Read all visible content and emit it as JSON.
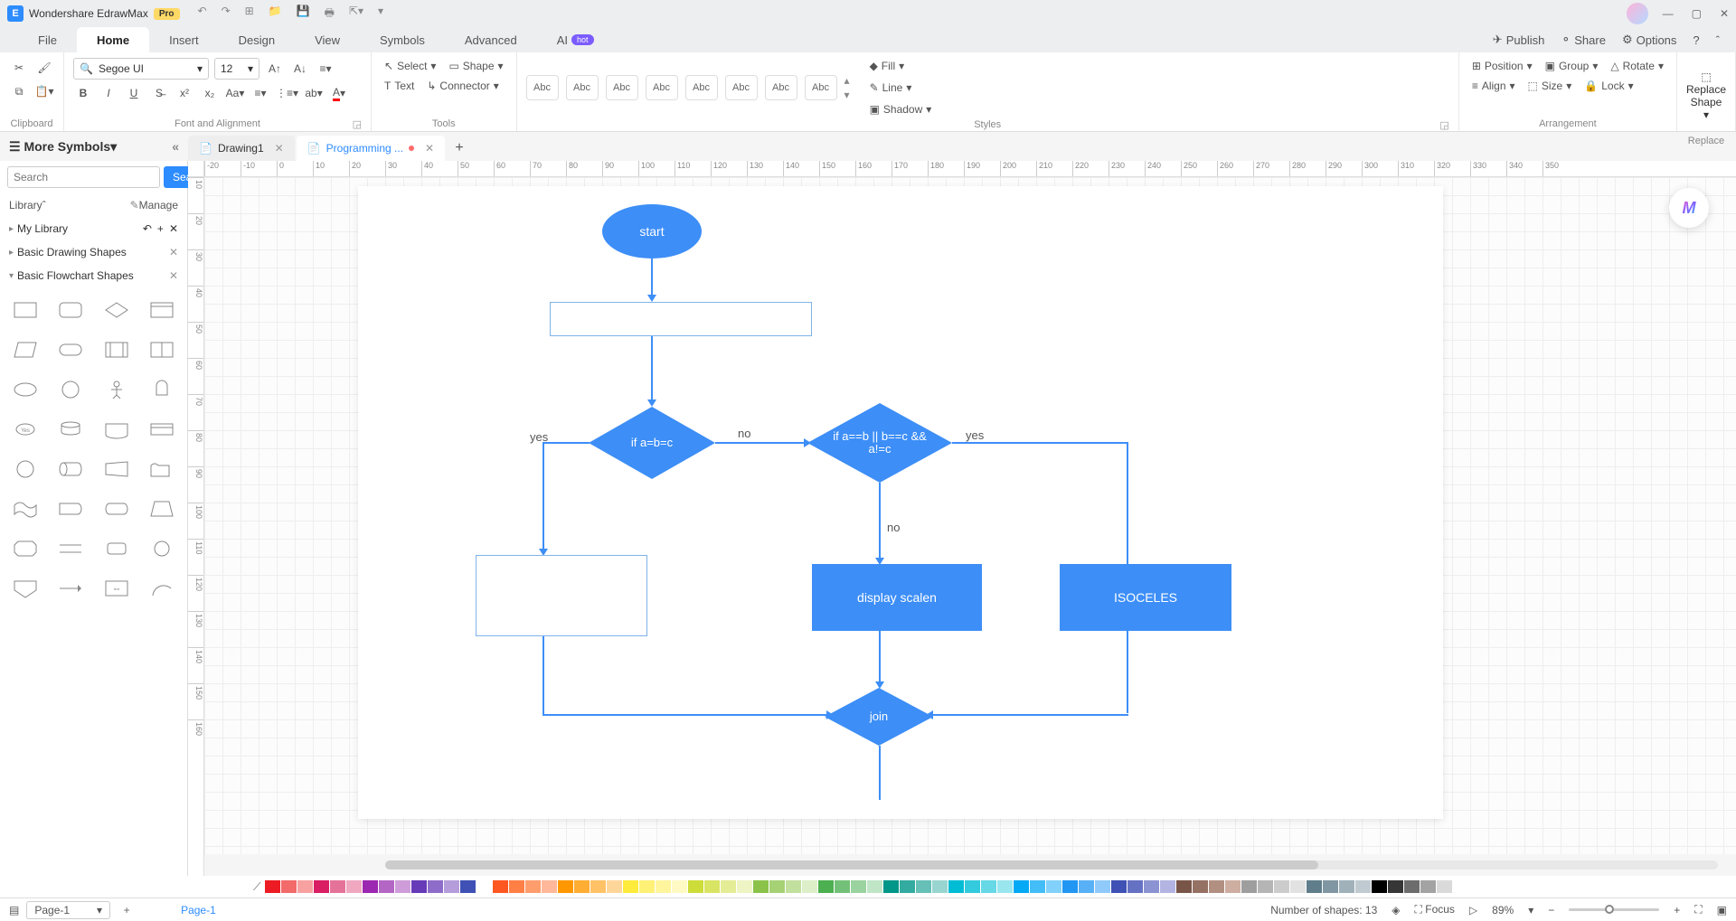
{
  "app": {
    "title": "Wondershare EdrawMax",
    "badge": "Pro"
  },
  "menus": [
    "File",
    "Home",
    "Insert",
    "Design",
    "View",
    "Symbols",
    "Advanced",
    "AI"
  ],
  "menu_active": 1,
  "ai_badge": "hot",
  "topright": {
    "publish": "Publish",
    "share": "Share",
    "options": "Options"
  },
  "ribbon": {
    "font_family": "Segoe UI",
    "font_size": "12",
    "tools_select": "Select",
    "tools_shape": "Shape",
    "tools_text": "Text",
    "tools_connector": "Connector",
    "style_label": "Abc",
    "fill": "Fill",
    "line": "Line",
    "shadow": "Shadow",
    "position": "Position",
    "group": "Group",
    "rotate": "Rotate",
    "align": "Align",
    "size": "Size",
    "lock": "Lock",
    "replace_shape": "Replace\nShape",
    "groups": {
      "clipboard": "Clipboard",
      "font": "Font and Alignment",
      "tools": "Tools",
      "styles": "Styles",
      "arrangement": "Arrangement",
      "replace": "Replace"
    }
  },
  "left": {
    "more_symbols": "More Symbols",
    "search_placeholder": "Search",
    "search_btn": "Search",
    "library": "Library",
    "manage": "Manage",
    "my_library": "My Library",
    "basic_drawing": "Basic Drawing Shapes",
    "basic_flowchart": "Basic Flowchart Shapes"
  },
  "doctabs": [
    {
      "label": "Drawing1",
      "active": false,
      "dirty": false
    },
    {
      "label": "Programming ...",
      "active": true,
      "dirty": true
    }
  ],
  "ruler_h": [
    -20,
    -10,
    0,
    10,
    20,
    30,
    40,
    50,
    60,
    70,
    80,
    90,
    100,
    110,
    120,
    130,
    140,
    150,
    160,
    170,
    180,
    190,
    200,
    210,
    220,
    230,
    240,
    250,
    260,
    270,
    280,
    290,
    300,
    310,
    320,
    330,
    340,
    350
  ],
  "ruler_v": [
    10,
    20,
    30,
    40,
    50,
    60,
    70,
    80,
    90,
    100,
    110,
    120,
    130,
    140,
    150,
    160
  ],
  "flowchart": {
    "accent": "#3d8ef7",
    "nodes": {
      "start": {
        "text": "start"
      },
      "dec1": {
        "text": "if a=b=c"
      },
      "dec2": {
        "text": "if a==b || b==c && a!=c"
      },
      "p1": {
        "text": "display scalen"
      },
      "p2": {
        "text": "ISOCELES"
      },
      "join": {
        "text": "join"
      }
    },
    "labels": {
      "yes1": "yes",
      "no1": "no",
      "yes2": "yes",
      "no2": "no"
    }
  },
  "colorbar": [
    "#ed1c24",
    "#f26a6a",
    "#f7a1a1",
    "#d91e63",
    "#e57399",
    "#f0a8c1",
    "#9c27b0",
    "#b366c4",
    "#ce9dd9",
    "#673ab7",
    "#8e6cc9",
    "#b59ddb",
    "#3f51b5",
    "#ffffff",
    "#ff5722",
    "#ff7f45",
    "#ff9d6d",
    "#ffb899",
    "#ff9800",
    "#ffad33",
    "#ffc266",
    "#ffd699",
    "#ffeb3b",
    "#fff176",
    "#fff59d",
    "#fff9c4",
    "#cddc39",
    "#d9e465",
    "#e4ec95",
    "#eff4c4",
    "#8bc34a",
    "#a6d174",
    "#c1e09e",
    "#dcefc9",
    "#4caf50",
    "#73c178",
    "#9ad3a0",
    "#c1e5c7",
    "#009688",
    "#33aba0",
    "#66c0b8",
    "#99d5d0",
    "#00bcd4",
    "#33cadd",
    "#66d8e6",
    "#99e6ef",
    "#03a9f4",
    "#42bdf7",
    "#81d1fa",
    "#2196f3",
    "#58b0f6",
    "#90cafa",
    "#3f51b5",
    "#6572c4",
    "#8c93d3",
    "#b3b4e2",
    "#795548",
    "#957164",
    "#b19082",
    "#cdaea1",
    "#9e9e9e",
    "#b5b5b5",
    "#cccccc",
    "#e2e2e2",
    "#607d8b",
    "#8097a3",
    "#a0b1ba",
    "#c0cbd1",
    "#000000",
    "#363636",
    "#6d6d6d",
    "#a3a3a3",
    "#dadada",
    "#ffffff"
  ],
  "status": {
    "page_sel": "Page-1",
    "page_label": "Page-1",
    "shapes_count": "Number of shapes: 13",
    "focus": "Focus",
    "zoom": "89%"
  }
}
